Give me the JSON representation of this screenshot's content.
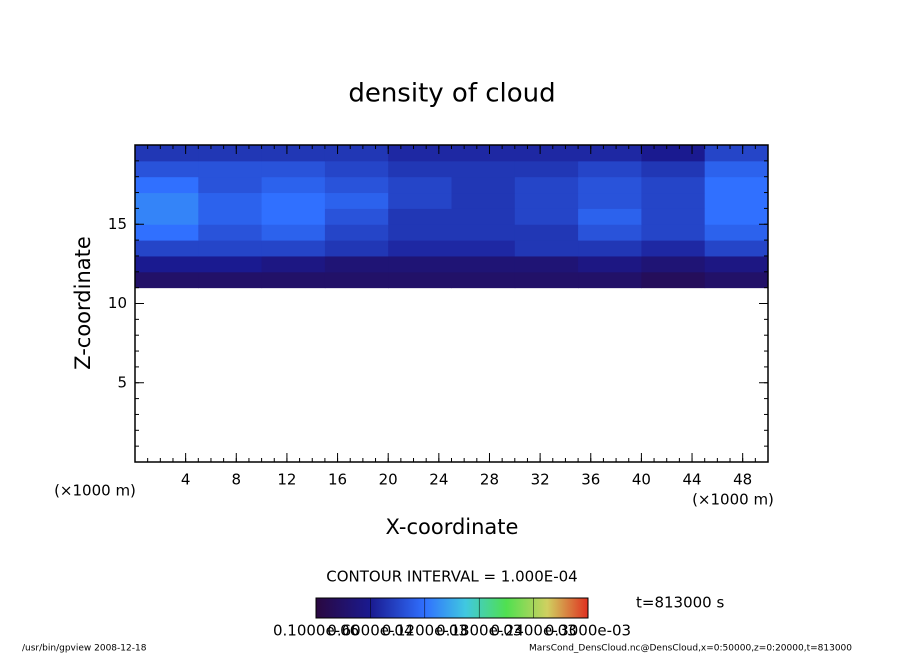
{
  "chart_data": {
    "type": "heatmap",
    "title": "density of cloud",
    "x_label": "X-coordinate",
    "y_label": "Z-coordinate",
    "x_unit_labels": [
      "(×1000 m)",
      "(×1000 m)"
    ],
    "xlim": [
      0,
      50
    ],
    "ylim": [
      0,
      20
    ],
    "xticks": [
      4,
      8,
      12,
      16,
      20,
      24,
      28,
      32,
      36,
      40,
      44,
      48
    ],
    "yticks": [
      5,
      10,
      15
    ],
    "xbins": [
      0,
      5,
      10,
      15,
      20,
      25,
      30,
      35,
      40,
      45,
      50
    ],
    "ybins": [
      11,
      12,
      13,
      14,
      15,
      16,
      17,
      18,
      19,
      20
    ],
    "values": [
      [
        3e-05,
        3e-05,
        3e-05,
        3e-05,
        3e-05,
        3e-05,
        3e-05,
        3e-05,
        2e-05,
        3e-05
      ],
      [
        6e-05,
        6e-05,
        5e-05,
        4e-05,
        4e-05,
        4e-05,
        4e-05,
        5e-05,
        4e-05,
        5e-05
      ],
      [
        9e-05,
        9e-05,
        9e-05,
        8e-05,
        7e-05,
        7e-05,
        8e-05,
        8e-05,
        7e-05,
        9e-05
      ],
      [
        0.00012,
        0.0001,
        0.00011,
        9e-05,
        8e-05,
        8e-05,
        8e-05,
        0.0001,
        9e-05,
        0.00011
      ],
      [
        0.00013,
        0.00011,
        0.00012,
        0.0001,
        8e-05,
        8e-05,
        9e-05,
        0.00011,
        9e-05,
        0.00012
      ],
      [
        0.00013,
        0.00011,
        0.00012,
        0.00011,
        9e-05,
        8e-05,
        9e-05,
        0.0001,
        9e-05,
        0.00012
      ],
      [
        0.00012,
        0.0001,
        0.00011,
        0.0001,
        9e-05,
        8e-05,
        9e-05,
        0.0001,
        9e-05,
        0.00012
      ],
      [
        0.0001,
        0.0001,
        0.0001,
        9e-05,
        8e-05,
        8e-05,
        8e-05,
        9e-05,
        8e-05,
        0.00011
      ],
      [
        8e-05,
        8e-05,
        8e-05,
        8e-05,
        7e-05,
        7e-05,
        7e-05,
        7e-05,
        6e-05,
        9e-05
      ]
    ],
    "contour_interval": "CONTOUR INTERVAL = 1.000E-04",
    "time_label": "t=813000 s",
    "colorbar": {
      "lim": [
        0,
        0.0003
      ],
      "ticks": [
        {
          "value": 1e-07,
          "label": "0.1000e-06"
        },
        {
          "value": 6e-05,
          "label": "0.6000e-04"
        },
        {
          "value": 0.00012,
          "label": "0.1200e-03"
        },
        {
          "value": 0.00018,
          "label": "0.1800e-03"
        },
        {
          "value": 0.00024,
          "label": "0.2400e-03"
        },
        {
          "value": 0.0003,
          "label": "0.3000e-03"
        }
      ]
    },
    "footer_left": "/usr/bin/gpview  2008-12-18",
    "footer_right": "MarsCond_DensCloud.nc@DensCloud,x=0:50000,z=0:20000,t=813000"
  }
}
